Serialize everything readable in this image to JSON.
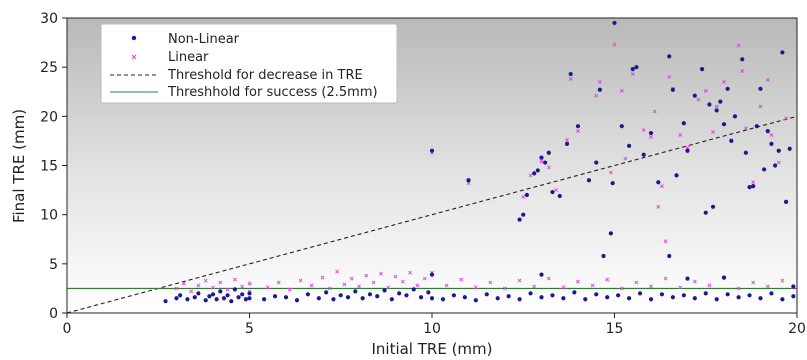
{
  "chart_data": {
    "type": "scatter",
    "xlabel": "Initial TRE (mm)",
    "ylabel": "Final TRE (mm)",
    "xlim": [
      0,
      20
    ],
    "ylim": [
      0,
      30
    ],
    "xticks": [
      0,
      5,
      10,
      15,
      20
    ],
    "yticks": [
      0,
      5,
      10,
      15,
      20,
      25,
      30
    ],
    "grid": false,
    "background": "vertical gradient, gray at top to white at bottom",
    "legend_position": "top-left",
    "series": [
      {
        "name": "Non-Linear",
        "marker": "dot",
        "color": "#1a1a8c",
        "points": [
          [
            10.0,
            16.5
          ],
          [
            11.0,
            13.5
          ],
          [
            12.4,
            9.5
          ],
          [
            12.5,
            10.0
          ],
          [
            12.6,
            12.0
          ],
          [
            12.8,
            14.2
          ],
          [
            12.9,
            14.5
          ],
          [
            13.0,
            15.8
          ],
          [
            13.1,
            15.3
          ],
          [
            13.2,
            16.3
          ],
          [
            13.3,
            12.3
          ],
          [
            13.5,
            11.9
          ],
          [
            13.7,
            17.2
          ],
          [
            13.8,
            24.3
          ],
          [
            14.0,
            19.0
          ],
          [
            14.3,
            13.5
          ],
          [
            14.5,
            15.3
          ],
          [
            14.6,
            22.7
          ],
          [
            14.9,
            8.1
          ],
          [
            14.95,
            13.2
          ],
          [
            15.0,
            29.5
          ],
          [
            15.2,
            19.0
          ],
          [
            15.4,
            17.0
          ],
          [
            15.5,
            24.8
          ],
          [
            15.6,
            25.0
          ],
          [
            15.8,
            16.1
          ],
          [
            16.0,
            18.3
          ],
          [
            16.2,
            13.3
          ],
          [
            16.5,
            26.1
          ],
          [
            16.6,
            22.7
          ],
          [
            16.7,
            14.0
          ],
          [
            16.9,
            19.3
          ],
          [
            17.0,
            16.5
          ],
          [
            17.2,
            22.1
          ],
          [
            17.4,
            24.8
          ],
          [
            17.5,
            10.2
          ],
          [
            17.6,
            21.2
          ],
          [
            17.7,
            10.8
          ],
          [
            17.8,
            20.6
          ],
          [
            17.9,
            21.5
          ],
          [
            18.0,
            19.2
          ],
          [
            18.1,
            22.8
          ],
          [
            18.2,
            17.5
          ],
          [
            18.3,
            20.0
          ],
          [
            18.5,
            25.8
          ],
          [
            18.6,
            16.3
          ],
          [
            18.7,
            12.8
          ],
          [
            18.8,
            12.9
          ],
          [
            18.9,
            19.0
          ],
          [
            19.0,
            22.8
          ],
          [
            19.1,
            14.6
          ],
          [
            19.2,
            18.5
          ],
          [
            19.3,
            17.2
          ],
          [
            19.4,
            15.0
          ],
          [
            19.5,
            16.5
          ],
          [
            19.6,
            26.5
          ],
          [
            19.7,
            11.3
          ],
          [
            19.8,
            16.7
          ],
          [
            16.5,
            5.8
          ],
          [
            14.7,
            5.8
          ],
          [
            17.0,
            3.5
          ],
          [
            18.0,
            3.6
          ],
          [
            19.9,
            2.7
          ],
          [
            2.7,
            1.2
          ],
          [
            3.0,
            1.5
          ],
          [
            3.1,
            1.8
          ],
          [
            3.3,
            1.4
          ],
          [
            3.5,
            1.6
          ],
          [
            3.6,
            2.0
          ],
          [
            3.8,
            1.3
          ],
          [
            3.9,
            1.7
          ],
          [
            4.0,
            1.9
          ],
          [
            4.1,
            1.4
          ],
          [
            4.2,
            2.2
          ],
          [
            4.3,
            1.5
          ],
          [
            4.4,
            1.8
          ],
          [
            4.5,
            1.2
          ],
          [
            4.6,
            2.4
          ],
          [
            4.7,
            1.6
          ],
          [
            4.8,
            1.9
          ],
          [
            4.9,
            1.4
          ],
          [
            5.0,
            2.0
          ],
          [
            5.0,
            1.5
          ],
          [
            5.4,
            1.4
          ],
          [
            5.7,
            1.7
          ],
          [
            6.0,
            1.6
          ],
          [
            6.3,
            1.3
          ],
          [
            6.6,
            1.9
          ],
          [
            6.9,
            1.5
          ],
          [
            7.1,
            2.1
          ],
          [
            7.3,
            1.4
          ],
          [
            7.5,
            1.8
          ],
          [
            7.7,
            1.6
          ],
          [
            7.9,
            2.2
          ],
          [
            8.1,
            1.5
          ],
          [
            8.3,
            1.9
          ],
          [
            8.5,
            1.7
          ],
          [
            8.7,
            2.3
          ],
          [
            8.9,
            1.4
          ],
          [
            9.1,
            2.0
          ],
          [
            9.3,
            1.8
          ],
          [
            9.5,
            2.4
          ],
          [
            9.7,
            1.6
          ],
          [
            9.9,
            2.1
          ],
          [
            10.0,
            1.5
          ],
          [
            10.0,
            3.9
          ],
          [
            10.3,
            1.4
          ],
          [
            10.6,
            1.8
          ],
          [
            10.9,
            1.6
          ],
          [
            11.2,
            1.3
          ],
          [
            11.5,
            1.9
          ],
          [
            11.8,
            1.5
          ],
          [
            12.1,
            1.7
          ],
          [
            12.4,
            1.4
          ],
          [
            12.7,
            2.0
          ],
          [
            13.0,
            1.6
          ],
          [
            13.0,
            3.9
          ],
          [
            13.3,
            1.8
          ],
          [
            13.6,
            1.5
          ],
          [
            13.9,
            2.1
          ],
          [
            14.2,
            1.4
          ],
          [
            14.5,
            1.9
          ],
          [
            14.8,
            1.6
          ],
          [
            15.1,
            1.8
          ],
          [
            15.4,
            1.5
          ],
          [
            15.7,
            2.0
          ],
          [
            16.0,
            1.4
          ],
          [
            16.3,
            1.9
          ],
          [
            16.6,
            1.6
          ],
          [
            16.9,
            1.8
          ],
          [
            17.2,
            1.5
          ],
          [
            17.5,
            2.0
          ],
          [
            17.8,
            1.4
          ],
          [
            18.1,
            1.9
          ],
          [
            18.4,
            1.6
          ],
          [
            18.7,
            1.8
          ],
          [
            19.0,
            1.5
          ],
          [
            19.3,
            2.0
          ],
          [
            19.6,
            1.4
          ],
          [
            19.9,
            1.7
          ]
        ]
      },
      {
        "name": "Linear",
        "marker": "x",
        "color": "#e040e0",
        "points": [
          [
            10.0,
            16.3
          ],
          [
            11.0,
            13.2
          ],
          [
            12.5,
            11.8
          ],
          [
            12.7,
            14.0
          ],
          [
            13.0,
            15.4
          ],
          [
            13.2,
            14.8
          ],
          [
            13.4,
            12.5
          ],
          [
            13.7,
            17.6
          ],
          [
            13.8,
            23.8
          ],
          [
            14.0,
            18.5
          ],
          [
            14.5,
            22.1
          ],
          [
            14.6,
            23.5
          ],
          [
            14.9,
            14.3
          ],
          [
            15.0,
            27.3
          ],
          [
            15.2,
            22.6
          ],
          [
            15.3,
            15.7
          ],
          [
            15.5,
            24.3
          ],
          [
            15.8,
            18.6
          ],
          [
            16.0,
            17.9
          ],
          [
            16.1,
            20.5
          ],
          [
            16.3,
            12.9
          ],
          [
            16.5,
            24.0
          ],
          [
            16.6,
            22.8
          ],
          [
            16.8,
            18.1
          ],
          [
            17.0,
            16.8
          ],
          [
            17.3,
            21.7
          ],
          [
            17.5,
            22.6
          ],
          [
            17.7,
            18.4
          ],
          [
            17.8,
            21.0
          ],
          [
            18.0,
            23.5
          ],
          [
            18.2,
            17.6
          ],
          [
            18.4,
            27.2
          ],
          [
            18.5,
            24.6
          ],
          [
            18.6,
            18.8
          ],
          [
            18.8,
            13.3
          ],
          [
            19.0,
            21.0
          ],
          [
            19.2,
            23.7
          ],
          [
            19.3,
            18.1
          ],
          [
            19.5,
            15.3
          ],
          [
            19.7,
            19.8
          ],
          [
            16.4,
            7.3
          ],
          [
            16.2,
            10.8
          ],
          [
            3.0,
            2.5
          ],
          [
            3.2,
            3.0
          ],
          [
            3.4,
            2.2
          ],
          [
            3.6,
            2.8
          ],
          [
            3.8,
            3.3
          ],
          [
            4.0,
            2.6
          ],
          [
            4.2,
            3.1
          ],
          [
            4.4,
            2.4
          ],
          [
            4.6,
            3.4
          ],
          [
            4.8,
            2.7
          ],
          [
            5.0,
            3.0
          ],
          [
            5.0,
            2.2
          ],
          [
            5.5,
            2.6
          ],
          [
            5.8,
            3.1
          ],
          [
            6.1,
            2.4
          ],
          [
            6.4,
            3.3
          ],
          [
            6.7,
            2.8
          ],
          [
            7.0,
            3.6
          ],
          [
            7.2,
            2.5
          ],
          [
            7.4,
            4.2
          ],
          [
            7.6,
            2.9
          ],
          [
            7.8,
            3.5
          ],
          [
            8.0,
            2.7
          ],
          [
            8.2,
            3.8
          ],
          [
            8.4,
            3.1
          ],
          [
            8.6,
            4.0
          ],
          [
            8.8,
            2.6
          ],
          [
            9.0,
            3.7
          ],
          [
            9.2,
            3.2
          ],
          [
            9.4,
            4.1
          ],
          [
            9.6,
            2.8
          ],
          [
            9.8,
            3.5
          ],
          [
            10.0,
            4.1
          ],
          [
            10.4,
            2.8
          ],
          [
            10.8,
            3.4
          ],
          [
            11.2,
            2.6
          ],
          [
            11.6,
            3.1
          ],
          [
            12.0,
            2.5
          ],
          [
            12.4,
            3.3
          ],
          [
            12.8,
            2.7
          ],
          [
            13.2,
            3.5
          ],
          [
            13.6,
            2.6
          ],
          [
            14.0,
            3.2
          ],
          [
            14.4,
            2.8
          ],
          [
            14.8,
            3.4
          ],
          [
            15.2,
            2.5
          ],
          [
            15.6,
            3.1
          ],
          [
            16.0,
            2.7
          ],
          [
            16.4,
            3.5
          ],
          [
            16.8,
            2.6
          ],
          [
            17.2,
            3.2
          ],
          [
            17.6,
            2.8
          ],
          [
            18.0,
            3.6
          ],
          [
            18.4,
            2.5
          ],
          [
            18.8,
            3.1
          ],
          [
            19.2,
            2.7
          ],
          [
            19.6,
            3.3
          ],
          [
            19.9,
            2.6
          ]
        ]
      },
      {
        "name": "Threshold for decrease in TRE",
        "type": "line",
        "style": "dashed",
        "color": "#222222",
        "points": [
          [
            0,
            0
          ],
          [
            20,
            20
          ]
        ]
      },
      {
        "name": "Threshhold for success (2.5mm)",
        "type": "line",
        "style": "solid",
        "color": "#2e7d32",
        "points": [
          [
            0,
            2.5
          ],
          [
            20,
            2.5
          ]
        ]
      }
    ]
  }
}
